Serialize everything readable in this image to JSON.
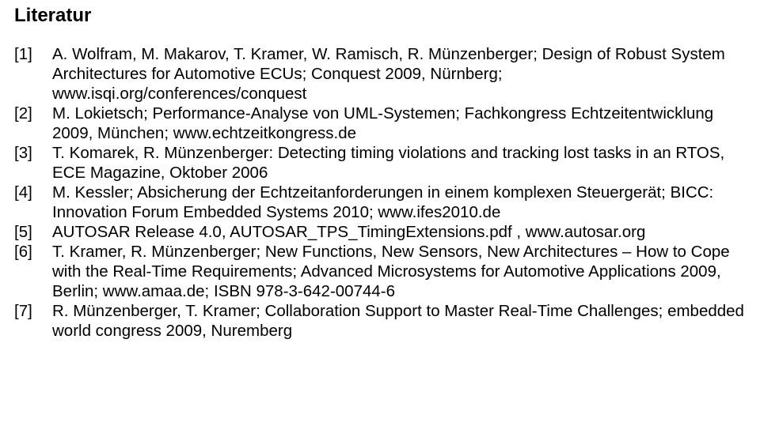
{
  "document": {
    "title": "Literatur",
    "title_fontsize": 24,
    "title_fontweight": "bold",
    "body_fontsize": 20.5,
    "line_height": 1.22,
    "text_color": "#000000",
    "background_color": "#ffffff",
    "font_family": "Arial, Helvetica, sans-serif",
    "references": [
      {
        "num": "[1]",
        "text": "A. Wolfram, M. Makarov, T. Kramer, W. Ramisch, R. Münzenberger; Design of Robust System Architectures for Automotive ECUs; Conquest 2009, Nürnberg; www.isqi.org/conferences/conquest"
      },
      {
        "num": "[2]",
        "text": "M. Lokietsch; Performance-Analyse von UML-Systemen; Fachkongress Echtzeitentwicklung 2009, München; www.echtzeitkongress.de"
      },
      {
        "num": "[3]",
        "text": "T. Komarek, R. Münzenberger: Detecting timing violations and tracking lost tasks in an RTOS, ECE Magazine, Oktober 2006"
      },
      {
        "num": "[4]",
        "text": "M. Kessler; Absicherung der Echtzeitanforderungen in einem komplexen Steuergerät; BICC: Innovation Forum Embedded Systems 2010; www.ifes2010.de"
      },
      {
        "num": "[5]",
        "text": "AUTOSAR Release 4.0, AUTOSAR_TPS_TimingExtensions.pdf , www.autosar.org"
      },
      {
        "num": "[6]",
        "text": "T. Kramer, R. Münzenberger; New Functions, New Sensors, New Architectures – How to Cope with the Real-Time Requirements; Advanced Microsystems for Automotive Applications 2009, Berlin; www.amaa.de; ISBN 978-3-642-00744-6"
      },
      {
        "num": "[7]",
        "text": "R. Münzenberger, T. Kramer; Collaboration Support to Master Real-Time Challenges; embedded world congress 2009, Nuremberg"
      }
    ]
  }
}
